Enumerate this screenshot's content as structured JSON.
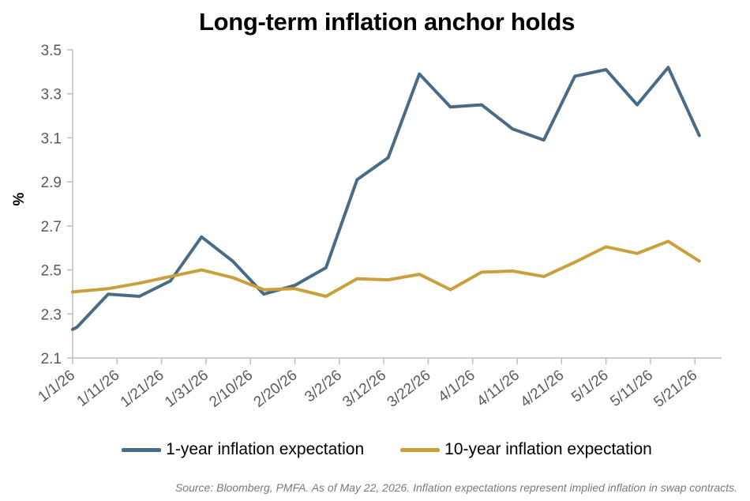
{
  "title": "Long-term inflation anchor holds",
  "source": "Source: Bloomberg, PMFA. As of May 22, 2026. Inflation expectations represent implied inflation in swap contracts.",
  "chart_data": {
    "type": "line",
    "title": "Long-term inflation anchor holds",
    "ylabel": "%",
    "xlabel": "",
    "ylim": [
      2.1,
      3.5
    ],
    "yticks": [
      "2.1",
      "2.3",
      "2.5",
      "2.7",
      "2.9",
      "3.1",
      "3.3",
      "3.5"
    ],
    "xlim": [
      "1/1/26",
      "5/27/26"
    ],
    "xticks": [
      "1/1/26",
      "1/11/26",
      "1/21/26",
      "1/31/26",
      "2/10/26",
      "2/20/26",
      "3/2/26",
      "3/12/26",
      "3/22/26",
      "4/1/26",
      "4/11/26",
      "4/21/26",
      "5/1/26",
      "5/11/26",
      "5/21/26"
    ],
    "grid": false,
    "legend_position": "bottom",
    "series": [
      {
        "name": "1-year inflation expectation",
        "color": "#4a6b85",
        "x": [
          "1/1/26",
          "1/2/26",
          "1/9/26",
          "1/16/26",
          "1/23/26",
          "1/30/26",
          "2/6/26",
          "2/13/26",
          "2/20/26",
          "2/27/26",
          "3/6/26",
          "3/13/26",
          "3/20/26",
          "3/27/26",
          "4/3/26",
          "4/10/26",
          "4/17/26",
          "4/24/26",
          "5/1/26",
          "5/8/26",
          "5/15/26",
          "5/22/26"
        ],
        "y": [
          2.23,
          2.24,
          2.39,
          2.38,
          2.45,
          2.65,
          2.54,
          2.39,
          2.43,
          2.51,
          2.91,
          3.01,
          3.39,
          3.24,
          3.25,
          3.14,
          3.09,
          3.38,
          3.41,
          3.25,
          3.42,
          3.11
        ]
      },
      {
        "name": "10-year inflation expectation",
        "color": "#c9a03c",
        "x": [
          "1/1/26",
          "1/9/26",
          "1/16/26",
          "1/23/26",
          "1/30/26",
          "2/6/26",
          "2/13/26",
          "2/20/26",
          "2/27/26",
          "3/6/26",
          "3/13/26",
          "3/20/26",
          "3/27/26",
          "4/3/26",
          "4/10/26",
          "4/17/26",
          "4/24/26",
          "5/1/26",
          "5/8/26",
          "5/15/26",
          "5/22/26"
        ],
        "y": [
          2.4,
          2.415,
          2.44,
          2.47,
          2.5,
          2.465,
          2.41,
          2.415,
          2.38,
          2.46,
          2.455,
          2.48,
          2.41,
          2.49,
          2.495,
          2.47,
          2.535,
          2.605,
          2.575,
          2.63,
          2.54
        ]
      }
    ]
  }
}
